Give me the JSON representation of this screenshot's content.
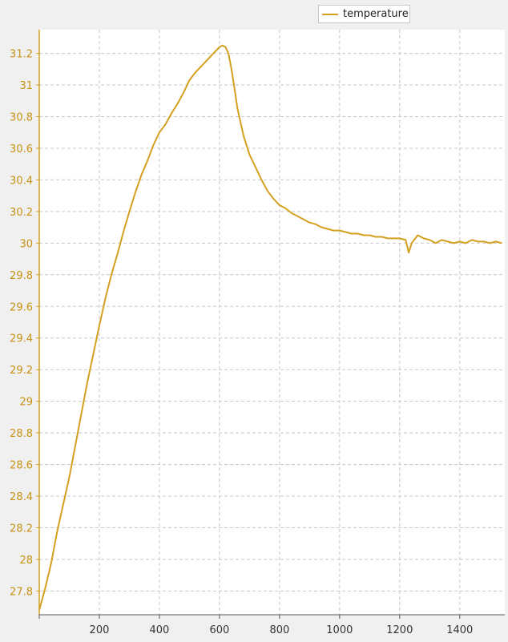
{
  "colors": {
    "series": "#d4a020",
    "axis": "#d4a020",
    "grid": "#c8c8c8",
    "plot_bg": "#ffffff",
    "page_bg": "#f0f0f0",
    "tick_label_y": "#c79214",
    "tick_label_x": "#333333"
  },
  "chart_data": {
    "type": "line",
    "title": "",
    "xlabel": "",
    "ylabel": "",
    "xlim": [
      0,
      1550
    ],
    "ylim": [
      27.65,
      31.35
    ],
    "grid": true,
    "legend_placement": "top-right",
    "x_ticks": [
      200,
      400,
      600,
      800,
      1000,
      1200,
      1400
    ],
    "x_tick_labels": [
      "200",
      "400",
      "600",
      "800",
      "1000",
      "1200",
      "1400"
    ],
    "y_ticks": [
      27.8,
      28,
      28.2,
      28.4,
      28.6,
      28.8,
      29,
      29.2,
      29.4,
      29.6,
      29.8,
      30,
      30.2,
      30.4,
      30.6,
      30.8,
      31,
      31.2
    ],
    "y_tick_labels": [
      "27.8",
      "28",
      "28.2",
      "28.4",
      "28.6",
      "28.8",
      "29",
      "29.2",
      "29.4",
      "29.6",
      "29.8",
      "30",
      "30.2",
      "30.4",
      "30.6",
      "30.8",
      "31",
      "31.2"
    ],
    "series": [
      {
        "name": "temperature",
        "x": [
          0,
          20,
          40,
          60,
          80,
          100,
          120,
          140,
          160,
          180,
          200,
          220,
          240,
          260,
          280,
          300,
          320,
          340,
          360,
          380,
          400,
          420,
          440,
          460,
          480,
          500,
          520,
          540,
          560,
          580,
          600,
          610,
          620,
          630,
          640,
          650,
          660,
          680,
          700,
          720,
          740,
          760,
          780,
          800,
          820,
          840,
          860,
          880,
          900,
          920,
          940,
          960,
          980,
          1000,
          1020,
          1040,
          1060,
          1080,
          1100,
          1120,
          1140,
          1160,
          1180,
          1200,
          1220,
          1230,
          1240,
          1260,
          1280,
          1300,
          1320,
          1340,
          1360,
          1380,
          1400,
          1420,
          1440,
          1460,
          1480,
          1500,
          1520,
          1540
        ],
        "y": [
          27.68,
          27.82,
          27.98,
          28.18,
          28.35,
          28.52,
          28.72,
          28.92,
          29.12,
          29.3,
          29.48,
          29.65,
          29.8,
          29.93,
          30.07,
          30.2,
          30.32,
          30.43,
          30.52,
          30.62,
          30.7,
          30.75,
          30.82,
          30.88,
          30.95,
          31.03,
          31.08,
          31.12,
          31.16,
          31.2,
          31.24,
          31.25,
          31.24,
          31.2,
          31.1,
          30.98,
          30.85,
          30.68,
          30.56,
          30.48,
          30.4,
          30.33,
          30.28,
          30.24,
          30.22,
          30.19,
          30.17,
          30.15,
          30.13,
          30.12,
          30.1,
          30.09,
          30.08,
          30.08,
          30.07,
          30.06,
          30.06,
          30.05,
          30.05,
          30.04,
          30.04,
          30.03,
          30.03,
          30.03,
          30.02,
          29.94,
          30.0,
          30.05,
          30.03,
          30.02,
          30.0,
          30.02,
          30.01,
          30.0,
          30.01,
          30.0,
          30.02,
          30.01,
          30.01,
          30.0,
          30.01,
          30.0
        ]
      }
    ]
  }
}
